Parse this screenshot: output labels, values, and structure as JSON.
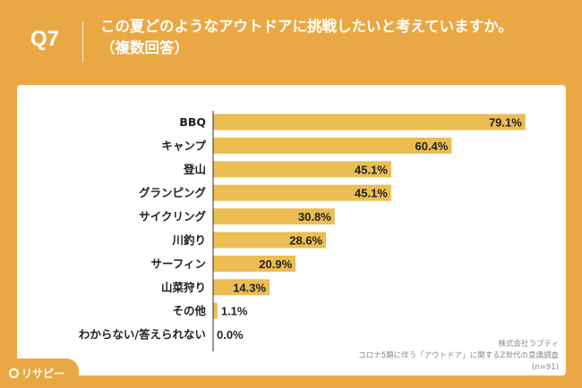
{
  "header": {
    "question_label": "Q7",
    "title_line1": "この夏どのようなアウトドアに挑戦したいと考えていますか。",
    "title_line2": "（複数回答）"
  },
  "chart_data": {
    "type": "bar",
    "orientation": "horizontal",
    "categories": [
      "BBQ",
      "キャンプ",
      "登山",
      "グランピング",
      "サイクリング",
      "川釣り",
      "サーフィン",
      "山菜狩り",
      "その他",
      "わからない/答えられない"
    ],
    "values": [
      79.1,
      60.4,
      45.1,
      45.1,
      30.8,
      28.6,
      20.9,
      14.3,
      1.1,
      0.0
    ],
    "value_labels": [
      "79.1%",
      "60.4%",
      "45.1%",
      "45.1%",
      "30.8%",
      "28.6%",
      "20.9%",
      "14.3%",
      "1.1%",
      "0.0%"
    ],
    "xlim": [
      0,
      100
    ],
    "grid": false,
    "bar_color": "#EBBD52"
  },
  "footnote": {
    "line1": "株式会社ラプティ",
    "line2": "コロナ5類に伴う「アウトドア」に関するZ世代の意識調査",
    "line3": "(n=91)"
  },
  "logo": {
    "text": "リサピー"
  },
  "colors": {
    "background": "#EAA844",
    "panel": "#FFFFFF",
    "bar": "#EBBD52",
    "axis": "#333333"
  }
}
